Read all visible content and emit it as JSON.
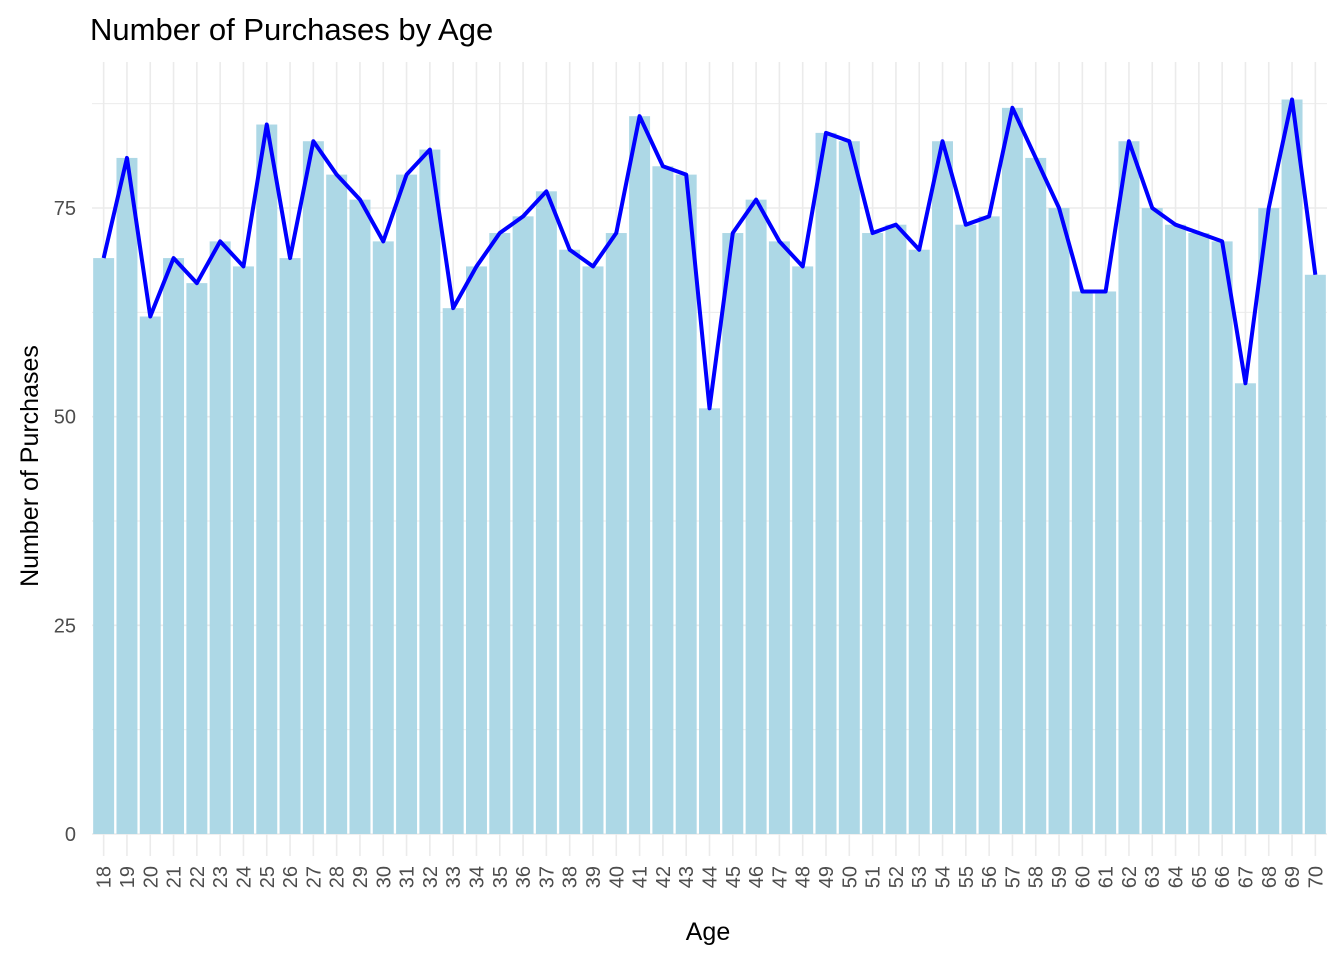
{
  "chart_data": {
    "type": "bar",
    "title": "Number of Purchases by Age",
    "xlabel": "Age",
    "ylabel": "Number of Purchases",
    "ylim": [
      0,
      88
    ],
    "yticks": [
      0,
      25,
      50,
      75
    ],
    "grid": true,
    "legend": "none",
    "colors": {
      "bar": "#ADD8E6",
      "line": "#0000FF",
      "grid": "#EBEBEB"
    },
    "categories": [
      "18",
      "19",
      "20",
      "21",
      "22",
      "23",
      "24",
      "25",
      "26",
      "27",
      "28",
      "29",
      "30",
      "31",
      "32",
      "33",
      "34",
      "35",
      "36",
      "37",
      "38",
      "39",
      "40",
      "41",
      "42",
      "43",
      "44",
      "45",
      "46",
      "47",
      "48",
      "49",
      "50",
      "51",
      "52",
      "53",
      "54",
      "55",
      "56",
      "57",
      "58",
      "59",
      "60",
      "61",
      "62",
      "63",
      "64",
      "65",
      "66",
      "67",
      "68",
      "69",
      "70"
    ],
    "values": [
      69,
      81,
      62,
      69,
      66,
      71,
      68,
      85,
      69,
      83,
      79,
      76,
      71,
      79,
      82,
      63,
      68,
      72,
      74,
      77,
      70,
      68,
      72,
      86,
      80,
      79,
      51,
      72,
      76,
      71,
      68,
      84,
      83,
      72,
      73,
      70,
      83,
      73,
      74,
      87,
      81,
      75,
      65,
      65,
      83,
      75,
      73,
      72,
      71,
      54,
      75,
      88,
      67
    ]
  }
}
